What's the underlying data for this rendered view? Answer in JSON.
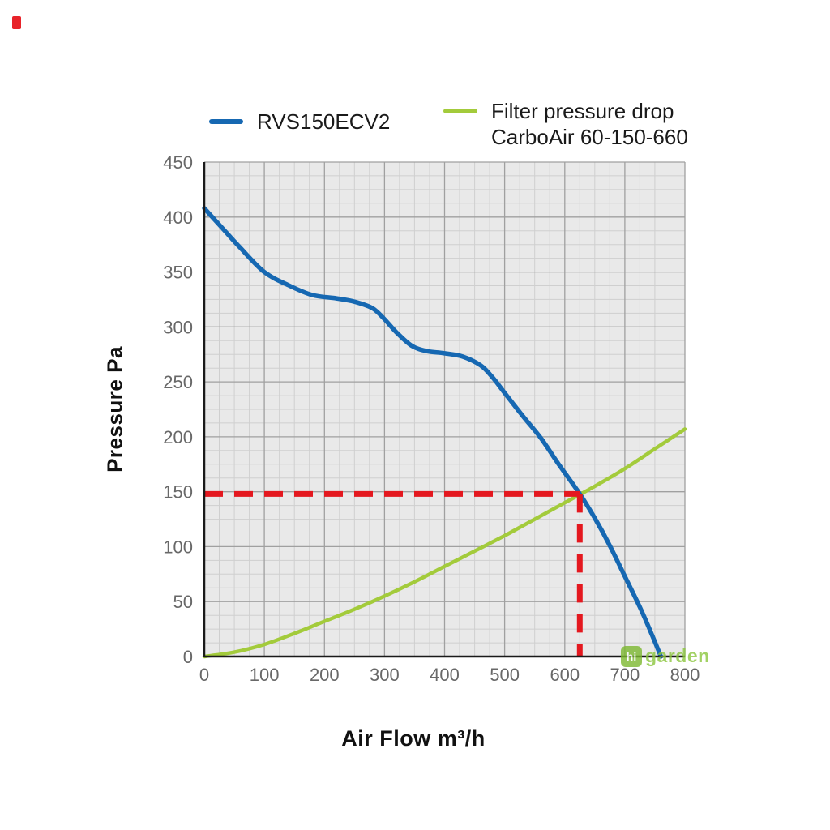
{
  "page": {
    "background": "#ffffff"
  },
  "corner_mark": {
    "color": "#e8232a"
  },
  "legend": {
    "position": "top",
    "items": [
      {
        "label_lines": [
          "RVS150ECV2"
        ],
        "color": "#1668b2"
      },
      {
        "label_lines": [
          "Filter pressure drop",
          "CarboAir 60-150-660"
        ],
        "color": "#a3cb3b"
      }
    ]
  },
  "axes": {
    "ylabel": "Pressure Pa",
    "xlabel": "Air Flow m³/h"
  },
  "watermark": {
    "box_text": "hi",
    "text": "garden",
    "color": "#8cc63e"
  },
  "chart_data": {
    "type": "line",
    "title": "",
    "xlabel": "Air Flow m³/h",
    "ylabel": "Pressure Pa",
    "xlim": [
      0,
      800
    ],
    "ylim": [
      0,
      450
    ],
    "x_ticks": [
      0,
      100,
      200,
      300,
      400,
      500,
      600,
      700,
      800
    ],
    "y_ticks": [
      0,
      50,
      100,
      150,
      200,
      250,
      300,
      350,
      400,
      450
    ],
    "x_minor_step": 25,
    "y_minor_step": 12.5,
    "grid": "on",
    "legend_position": "top",
    "plot_bg": "#e9e9e9",
    "grid_minor_color": "#cfcfcf",
    "grid_major_color": "#a0a0a0",
    "axis_color": "#1a1a1a",
    "series": [
      {
        "name": "RVS150ECV2",
        "color": "#1668b2",
        "width": 5.5,
        "points": [
          [
            0,
            408
          ],
          [
            30,
            390
          ],
          [
            60,
            372
          ],
          [
            100,
            350
          ],
          [
            140,
            338
          ],
          [
            180,
            329
          ],
          [
            220,
            326
          ],
          [
            250,
            323
          ],
          [
            280,
            317
          ],
          [
            300,
            307
          ],
          [
            320,
            295
          ],
          [
            345,
            283
          ],
          [
            370,
            278
          ],
          [
            400,
            276
          ],
          [
            430,
            273
          ],
          [
            460,
            265
          ],
          [
            480,
            254
          ],
          [
            500,
            240
          ],
          [
            530,
            219
          ],
          [
            560,
            199
          ],
          [
            590,
            175
          ],
          [
            625,
            148
          ],
          [
            650,
            126
          ],
          [
            675,
            101
          ],
          [
            700,
            73
          ],
          [
            725,
            45
          ],
          [
            745,
            20
          ],
          [
            760,
            0
          ]
        ]
      },
      {
        "name": "Filter pressure drop CarboAir 60-150-660",
        "color": "#a3cb3b",
        "width": 4.5,
        "points": [
          [
            0,
            0
          ],
          [
            50,
            4
          ],
          [
            100,
            11
          ],
          [
            150,
            21
          ],
          [
            200,
            32
          ],
          [
            250,
            43
          ],
          [
            300,
            55
          ],
          [
            350,
            68
          ],
          [
            400,
            82
          ],
          [
            450,
            96
          ],
          [
            500,
            110
          ],
          [
            550,
            125
          ],
          [
            600,
            140
          ],
          [
            650,
            155
          ],
          [
            700,
            171
          ],
          [
            750,
            189
          ],
          [
            800,
            207
          ]
        ]
      }
    ],
    "operating_point": {
      "x": 625,
      "y": 148,
      "color": "#e4181f",
      "line_style": "dashed"
    }
  }
}
